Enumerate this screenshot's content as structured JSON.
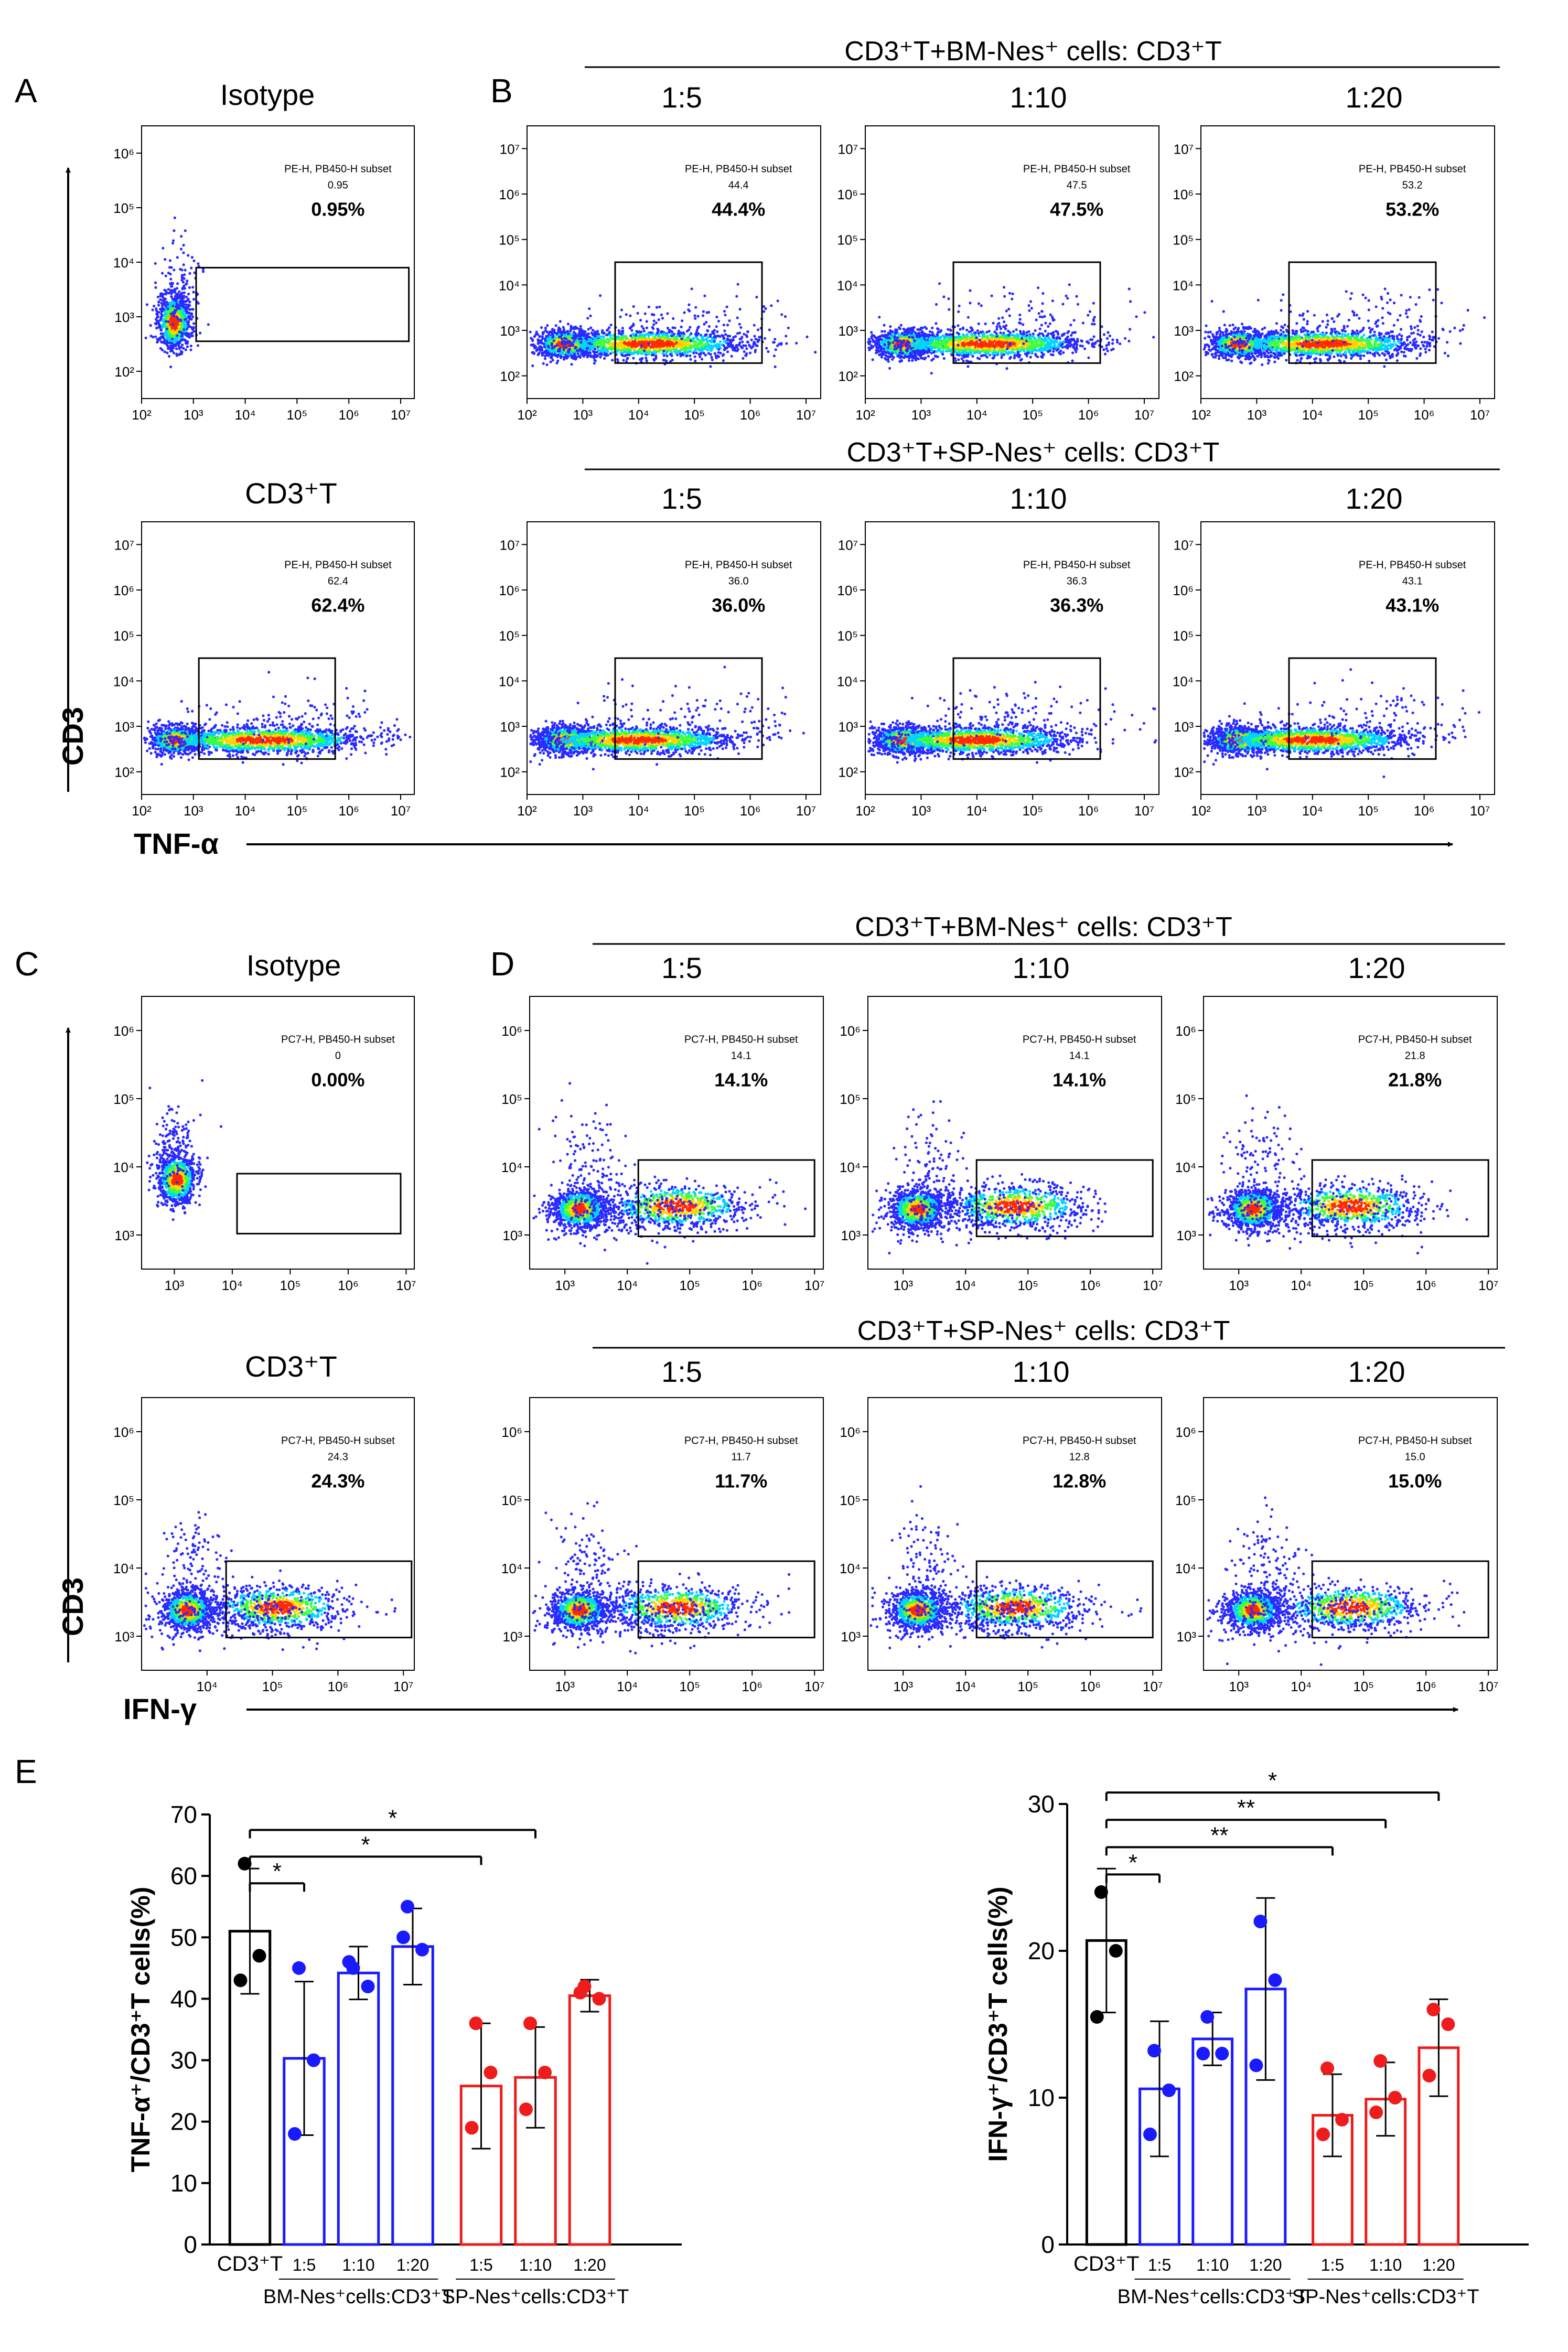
{
  "panels": {
    "A": {
      "letter": "A",
      "y_axis": "CD3",
      "x_axis": "TNF-α",
      "plots": [
        {
          "id": "A1",
          "title": "Isotype",
          "gate_label": "PE-H, PB450-H subset",
          "gate_value": "0.95",
          "percent": "0.95%",
          "y_ticks": [
            "10²",
            "10³",
            "10⁴",
            "10⁵",
            "10⁶"
          ],
          "x_ticks": [
            "10²",
            "10³",
            "10⁴",
            "10⁵",
            "10⁶",
            "10⁷"
          ]
        },
        {
          "id": "A2",
          "title": "CD3⁺T",
          "gate_label": "PE-H, PB450-H subset",
          "gate_value": "62.4",
          "percent": "62.4%",
          "y_ticks": [
            "10²",
            "10³",
            "10⁴",
            "10⁵",
            "10⁶",
            "10⁷"
          ],
          "x_ticks": [
            "10²",
            "10³",
            "10⁴",
            "10⁵",
            "10⁶",
            "10⁷"
          ]
        }
      ]
    },
    "B": {
      "letter": "B",
      "group_titles": [
        "CD3⁺T+BM-Nes⁺ cells: CD3⁺T",
        "CD3⁺T+SP-Nes⁺ cells: CD3⁺T"
      ],
      "ratios": [
        "1:5",
        "1:10",
        "1:20"
      ],
      "plots": [
        {
          "id": "B1",
          "gate_label": "PE-H, PB450-H subset",
          "gate_value": "44.4",
          "percent": "44.4%"
        },
        {
          "id": "B2",
          "gate_label": "PE-H, PB450-H subset",
          "gate_value": "47.5",
          "percent": "47.5%"
        },
        {
          "id": "B3",
          "gate_label": "PE-H, PB450-H subset",
          "gate_value": "53.2",
          "percent": "53.2%"
        },
        {
          "id": "B4",
          "gate_label": "PE-H, PB450-H subset",
          "gate_value": "36.0",
          "percent": "36.0%"
        },
        {
          "id": "B5",
          "gate_label": "PE-H, PB450-H subset",
          "gate_value": "36.3",
          "percent": "36.3%"
        },
        {
          "id": "B6",
          "gate_label": "PE-H, PB450-H subset",
          "gate_value": "43.1",
          "percent": "43.1%"
        }
      ],
      "y_ticks": [
        "10²",
        "10³",
        "10⁴",
        "10⁵",
        "10⁶",
        "10⁷"
      ],
      "x_ticks": [
        "10²",
        "10³",
        "10⁴",
        "10⁵",
        "10⁶",
        "10⁷"
      ]
    },
    "C": {
      "letter": "C",
      "y_axis": "CD3",
      "x_axis": "IFN-γ",
      "plots": [
        {
          "id": "C1",
          "title": "Isotype",
          "gate_label": "PC7-H, PB450-H subset",
          "gate_value": "0",
          "percent": "0.00%",
          "y_ticks": [
            "10³",
            "10⁴",
            "10⁵",
            "10⁶"
          ],
          "x_ticks": [
            "10³",
            "10⁴",
            "10⁵",
            "10⁶",
            "10⁷"
          ]
        },
        {
          "id": "C2",
          "title": "CD3⁺T",
          "gate_label": "PC7-H, PB450-H subset",
          "gate_value": "24.3",
          "percent": "24.3%",
          "y_ticks": [
            "10³",
            "10⁴",
            "10⁵",
            "10⁶"
          ],
          "x_ticks": [
            "10⁴",
            "10⁵",
            "10⁶",
            "10⁷"
          ]
        }
      ]
    },
    "D": {
      "letter": "D",
      "group_titles": [
        "CD3⁺T+BM-Nes⁺ cells: CD3⁺T",
        "CD3⁺T+SP-Nes⁺ cells: CD3⁺T"
      ],
      "ratios": [
        "1:5",
        "1:10",
        "1:20"
      ],
      "plots": [
        {
          "id": "D1",
          "gate_label": "PC7-H, PB450-H subset",
          "gate_value": "14.1",
          "percent": "14.1%"
        },
        {
          "id": "D2",
          "gate_label": "PC7-H, PB450-H subset",
          "gate_value": "14.1",
          "percent": "14.1%"
        },
        {
          "id": "D3",
          "gate_label": "PC7-H, PB450-H subset",
          "gate_value": "21.8",
          "percent": "21.8%"
        },
        {
          "id": "D4",
          "gate_label": "PC7-H, PB450-H subset",
          "gate_value": "11.7",
          "percent": "11.7%"
        },
        {
          "id": "D5",
          "gate_label": "PC7-H, PB450-H subset",
          "gate_value": "12.8",
          "percent": "12.8%"
        },
        {
          "id": "D6",
          "gate_label": "PC7-H, PB450-H subset",
          "gate_value": "15.0",
          "percent": "15.0%"
        }
      ],
      "y_ticks": [
        "10³",
        "10⁴",
        "10⁵",
        "10⁶"
      ],
      "x_ticks": [
        "10³",
        "10⁴",
        "10⁵",
        "10⁶",
        "10⁷"
      ]
    },
    "E": {
      "letter": "E"
    }
  },
  "chart_data": [
    {
      "type": "bar",
      "ylabel": "TNF-α⁺/CD3⁺T cells(%)",
      "ylim": [
        0,
        70
      ],
      "yticks": [
        0,
        10,
        20,
        30,
        40,
        50,
        60,
        70
      ],
      "categories": [
        "CD3⁺T",
        "1:5",
        "1:10",
        "1:20",
        "1:5",
        "1:10",
        "1:20"
      ],
      "group_labels": [
        "BM-Nes⁺cells:CD3⁺T",
        "SP-Nes⁺cells:CD3⁺T"
      ],
      "colors": [
        "#000000",
        "#1a1aff",
        "#1a1aff",
        "#1a1aff",
        "#ee1c1c",
        "#ee1c1c",
        "#ee1c1c"
      ],
      "values": [
        51,
        30.3,
        44.2,
        48.5,
        25.8,
        27.2,
        40.5
      ],
      "errors": [
        10.2,
        12.5,
        4.3,
        6.2,
        10.2,
        8.2,
        2.6
      ],
      "points": [
        [
          62,
          47,
          43
        ],
        [
          45,
          30,
          18
        ],
        [
          45,
          42,
          46
        ],
        [
          55,
          48,
          50
        ],
        [
          36,
          28,
          19
        ],
        [
          36,
          28,
          22
        ],
        [
          42,
          40,
          41
        ]
      ],
      "significance": [
        {
          "from": 0,
          "to": 1,
          "label": "*"
        },
        {
          "from": 0,
          "to": 4,
          "label": "*"
        },
        {
          "from": 0,
          "to": 5,
          "label": "*"
        }
      ]
    },
    {
      "type": "bar",
      "ylabel": "IFN-γ⁺/CD3⁺T cells(%)",
      "ylim": [
        0,
        30
      ],
      "yticks": [
        0,
        10,
        20,
        30
      ],
      "categories": [
        "CD3⁺T",
        "1:5",
        "1:10",
        "1:20",
        "1:5",
        "1:10",
        "1:20"
      ],
      "group_labels": [
        "BM-Nes⁺cells:CD3⁺T",
        "SP-Nes⁺cells:CD3⁺T"
      ],
      "colors": [
        "#000000",
        "#1a1aff",
        "#1a1aff",
        "#1a1aff",
        "#ee1c1c",
        "#ee1c1c",
        "#ee1c1c"
      ],
      "values": [
        20.7,
        10.6,
        14.0,
        17.4,
        8.8,
        9.9,
        13.4
      ],
      "errors": [
        4.9,
        4.6,
        1.8,
        6.2,
        2.8,
        2.5,
        3.3
      ],
      "points": [
        [
          24,
          20,
          15.5
        ],
        [
          13.2,
          10.5,
          7.5
        ],
        [
          15.5,
          13,
          13
        ],
        [
          22,
          18,
          12.2
        ],
        [
          12,
          8.5,
          7.5
        ],
        [
          12.5,
          10,
          9
        ],
        [
          16,
          15,
          11.5
        ]
      ],
      "significance": [
        {
          "from": 0,
          "to": 1,
          "label": "*"
        },
        {
          "from": 0,
          "to": 4,
          "label": "**"
        },
        {
          "from": 0,
          "to": 5,
          "label": "**"
        },
        {
          "from": 0,
          "to": 6,
          "label": "*"
        }
      ]
    }
  ]
}
